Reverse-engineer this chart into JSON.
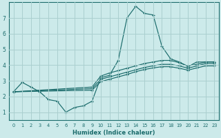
{
  "xlabel": "Humidex (Indice chaleur)",
  "bg_color": "#cceaea",
  "grid_color": "#aacfcf",
  "line_color": "#1a6b6b",
  "spine_color": "#1a6b6b",
  "xlim": [
    -0.5,
    23.5
  ],
  "ylim": [
    0.5,
    8.0
  ],
  "xticks": [
    0,
    1,
    2,
    3,
    4,
    5,
    6,
    7,
    8,
    9,
    10,
    11,
    12,
    13,
    14,
    15,
    16,
    17,
    18,
    19,
    20,
    21,
    22,
    23
  ],
  "yticks": [
    1,
    2,
    3,
    4,
    5,
    6,
    7
  ],
  "series": {
    "line1_x": [
      0,
      1,
      2,
      3,
      4,
      5,
      6,
      7,
      8,
      9,
      10,
      11,
      12,
      13,
      14,
      15,
      16,
      17,
      18,
      19,
      20,
      21,
      22,
      23
    ],
    "line1_y": [
      2.3,
      2.9,
      2.6,
      2.3,
      1.8,
      1.7,
      1.0,
      1.3,
      1.4,
      1.7,
      3.2,
      3.35,
      4.3,
      7.0,
      7.75,
      7.3,
      7.2,
      5.2,
      4.4,
      4.2,
      3.9,
      4.2,
      4.2,
      4.2
    ],
    "line2_x": [
      0,
      9,
      10,
      11,
      12,
      13,
      14,
      15,
      16,
      17,
      18,
      19,
      20,
      21,
      22,
      23
    ],
    "line2_y": [
      2.3,
      2.6,
      3.3,
      3.5,
      3.65,
      3.8,
      3.95,
      4.1,
      4.2,
      4.3,
      4.3,
      4.15,
      3.95,
      4.05,
      4.2,
      4.2
    ],
    "line3_x": [
      0,
      9,
      10,
      11,
      12,
      13,
      14,
      15,
      16,
      17,
      18,
      19,
      20,
      21,
      22,
      23
    ],
    "line3_y": [
      2.3,
      2.5,
      3.1,
      3.25,
      3.4,
      3.55,
      3.7,
      3.85,
      3.95,
      4.05,
      4.05,
      3.95,
      3.8,
      3.95,
      4.1,
      4.1
    ],
    "line4_x": [
      0,
      9,
      10,
      11,
      12,
      13,
      14,
      15,
      16,
      17,
      18,
      19,
      20,
      21,
      22,
      23
    ],
    "line4_y": [
      2.3,
      2.4,
      2.95,
      3.1,
      3.25,
      3.4,
      3.58,
      3.72,
      3.82,
      3.9,
      3.9,
      3.8,
      3.68,
      3.82,
      3.95,
      3.95
    ]
  }
}
